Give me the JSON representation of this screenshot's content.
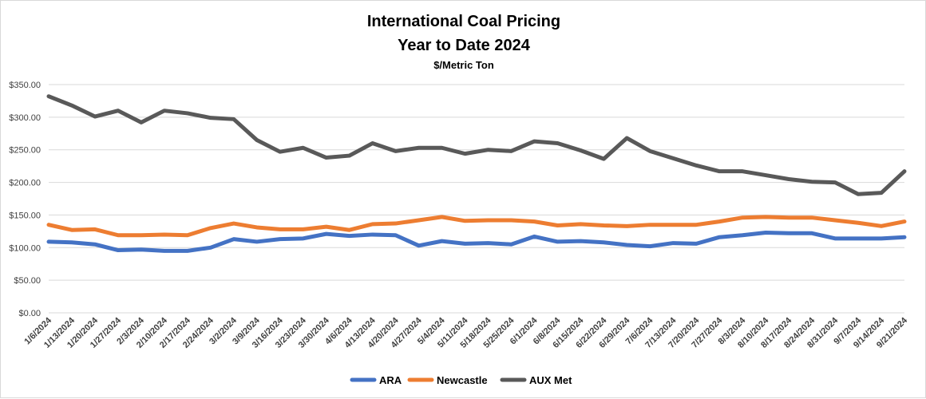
{
  "chart_data": {
    "type": "line",
    "title": "International Coal Pricing",
    "subtitle": "Year to Date 2024",
    "units": "$/Metric Ton",
    "xlabel": "",
    "ylabel": "",
    "ylim": [
      0,
      350
    ],
    "yticks": [
      "$0.00",
      "$50.00",
      "$100.00",
      "$150.00",
      "$200.00",
      "$250.00",
      "$300.00",
      "$350.00"
    ],
    "ytick_values": [
      0,
      50,
      100,
      150,
      200,
      250,
      300,
      350
    ],
    "grid": true,
    "legend_position": "bottom",
    "categories": [
      "1/6/2024",
      "1/13/2024",
      "1/20/2024",
      "1/27/2024",
      "2/3/2024",
      "2/10/2024",
      "2/17/2024",
      "2/24/2024",
      "3/2/2024",
      "3/9/2024",
      "3/16/2024",
      "3/23/2024",
      "3/30/2024",
      "4/6/2024",
      "4/13/2024",
      "4/20/2024",
      "4/27/2024",
      "5/4/2024",
      "5/11/2024",
      "5/18/2024",
      "5/25/2024",
      "6/1/2024",
      "6/8/2024",
      "6/15/2024",
      "6/22/2024",
      "6/29/2024",
      "7/6/2024",
      "7/13/2024",
      "7/20/2024",
      "7/27/2024",
      "8/3/2024",
      "8/10/2024",
      "8/17/2024",
      "8/24/2024",
      "8/31/2024",
      "9/7/2024",
      "9/14/2024",
      "9/21/2024"
    ],
    "series": [
      {
        "name": "ARA",
        "color": "#4472C4",
        "values": [
          109,
          108,
          105,
          96,
          97,
          95,
          95,
          100,
          113,
          109,
          113,
          114,
          121,
          118,
          120,
          119,
          103,
          110,
          106,
          107,
          105,
          117,
          109,
          110,
          108,
          104,
          102,
          107,
          106,
          116,
          119,
          123,
          122,
          122,
          114,
          114,
          114,
          116
        ]
      },
      {
        "name": "Newcastle",
        "color": "#ED7D31",
        "values": [
          135,
          127,
          128,
          119,
          119,
          120,
          119,
          130,
          137,
          131,
          128,
          128,
          132,
          127,
          136,
          137,
          142,
          147,
          141,
          142,
          142,
          140,
          134,
          136,
          134,
          133,
          135,
          135,
          135,
          140,
          146,
          147,
          146,
          146,
          142,
          138,
          133,
          140
        ]
      },
      {
        "name": "AUX Met",
        "color": "#595959",
        "values": [
          332,
          318,
          301,
          310,
          292,
          310,
          306,
          299,
          297,
          265,
          247,
          253,
          238,
          241,
          260,
          248,
          253,
          253,
          244,
          250,
          248,
          263,
          260,
          249,
          236,
          268,
          248,
          237,
          226,
          217,
          217,
          211,
          205,
          201,
          200,
          182,
          184,
          217
        ]
      }
    ]
  }
}
